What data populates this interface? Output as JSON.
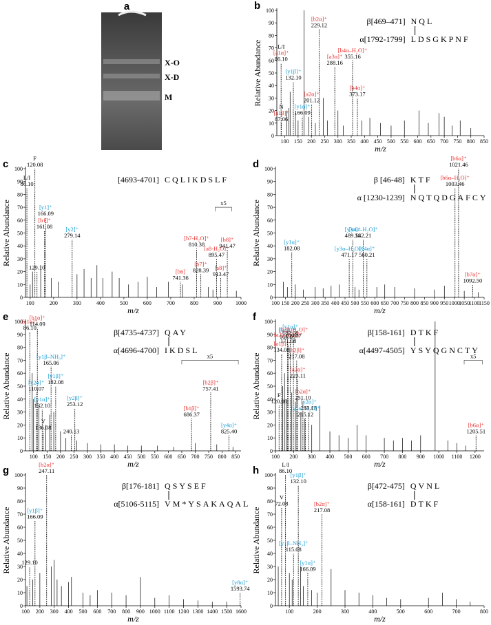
{
  "chart_data": [
    {
      "type": "gel",
      "panel": "a",
      "bands": [
        "X-O",
        "X-D",
        "M"
      ]
    },
    {
      "type": "spectrum",
      "panel": "b",
      "ylabel": "Relative Abundance",
      "xlabel": "m/z",
      "color": "#000000",
      "xlim": [
        70,
        850
      ],
      "xticks": [
        100,
        150,
        200,
        250,
        300,
        350,
        400,
        450,
        500,
        550,
        600,
        650,
        700,
        750,
        800,
        850
      ],
      "ylim": [
        0,
        100
      ],
      "yticks": [
        0,
        10,
        20,
        30,
        40,
        50,
        60,
        70,
        80,
        90,
        100
      ],
      "peptides": [
        {
          "name": "β[469–471]",
          "sequence": "NQL"
        },
        {
          "name": "α[1792-1799]",
          "sequence": "LDSGKPNF"
        }
      ],
      "x": [
        108,
        115,
        120,
        140,
        150,
        172,
        190,
        215,
        245,
        260,
        300,
        320,
        390,
        420,
        460,
        500,
        550,
        605,
        640,
        680,
        700,
        730,
        760,
        800
      ],
      "values": [
        20,
        22,
        35,
        18,
        12,
        100,
        15,
        10,
        30,
        12,
        20,
        8,
        12,
        14,
        10,
        8,
        12,
        20,
        10,
        18,
        15,
        8,
        12,
        6
      ],
      "peaks": {
        "x": [
          86.1,
          87.06,
          132.1,
          166.09,
          201.12,
          229.12,
          288.16,
          355.16,
          373.17
        ],
        "x_labels": [
          "86.10",
          "87.06",
          "132.10",
          "166.09",
          "201.12",
          "229.12",
          "288.16",
          "355.16",
          "373.17"
        ],
        "values": [
          58,
          10,
          43,
          15,
          25,
          85,
          55,
          60,
          30
        ],
        "names": [
          "[a1α]⁺",
          "[a1β]⁺",
          "[y1β]⁺",
          "[y1α]⁺",
          "[a2α]⁺",
          "[b2α]⁺",
          "[a3α]⁺",
          "[b4α–H₂O]⁺",
          "[b4α]⁺"
        ],
        "notes": [
          "L/I",
          "N",
          null,
          null,
          null,
          null,
          null,
          null,
          null
        ],
        "name_colors": [
          "#e8312f",
          "#e8312f",
          "#1a9fd6",
          "#1a9fd6",
          "#e8312f",
          "#e8312f",
          "#e8312f",
          "#e8312f",
          "#e8312f"
        ]
      }
    },
    {
      "type": "spectrum",
      "panel": "c",
      "ylabel": "Relative Abundance",
      "xlabel": "m/z",
      "color": "#000000",
      "xlim": [
        80,
        1000
      ],
      "xticks": [
        100,
        200,
        300,
        400,
        500,
        600,
        700,
        800,
        900,
        1000
      ],
      "ylim": [
        0,
        100
      ],
      "yticks": [
        0,
        10,
        20,
        30,
        40,
        50,
        60,
        70,
        80,
        90,
        100
      ],
      "peptides": [
        {
          "name": "[4693-4701]",
          "sequence": "CQLIKDSLF"
        }
      ],
      "x": [
        100,
        110,
        145,
        190,
        220,
        300,
        330,
        360,
        385,
        410,
        450,
        480,
        520,
        560,
        600,
        640,
        690,
        750,
        860,
        880,
        980
      ],
      "values": [
        10,
        20,
        25,
        15,
        12,
        18,
        22,
        15,
        25,
        15,
        20,
        15,
        10,
        12,
        16,
        8,
        12,
        10,
        8,
        6,
        5
      ],
      "peaks": {
        "x": [
          86.1,
          120.08,
          129.1,
          161.08,
          166.09,
          279.14,
          741.36,
          810.38,
          828.39,
          895.47,
          913.47,
          941.47
        ],
        "x_labels": [
          "86.10",
          "120.08",
          "129.10",
          "161.08",
          "166.09",
          "279.14",
          "741.36",
          "810.38",
          "828.39",
          "895.47",
          "913.47",
          "941.47"
        ],
        "values": [
          85,
          100,
          20,
          52,
          62,
          45,
          12,
          38,
          18,
          30,
          15,
          37
        ],
        "names": [
          null,
          null,
          null,
          "[b1]⁺",
          "[y1]⁺",
          "[y2]⁺",
          "[b6]",
          "[b7-H₂O]⁺",
          "[b7]⁺",
          "[a8-H₂O]⁺",
          "[a8]⁺",
          "[b8]⁺"
        ],
        "notes": [
          "L/I",
          "F",
          null,
          null,
          null,
          null,
          null,
          null,
          null,
          null,
          null,
          null
        ],
        "name_colors": [
          null,
          null,
          null,
          "#e8312f",
          "#1a9fd6",
          "#1a9fd6",
          "#e8312f",
          "#e8312f",
          "#e8312f",
          "#e8312f",
          "#e8312f",
          "#e8312f"
        ]
      },
      "zoom": {
        "label": "x5",
        "range": [
          890,
          960
        ]
      }
    },
    {
      "type": "spectrum",
      "panel": "d",
      "ylabel": "Relative Abundance",
      "xlabel": "m/z",
      "color": "#000000",
      "xlim": [
        100,
        1150
      ],
      "xticks": [
        100,
        150,
        200,
        250,
        300,
        350,
        400,
        450,
        500,
        550,
        600,
        650,
        700,
        750,
        800,
        850,
        900,
        950,
        1000,
        1050,
        1100,
        1150
      ],
      "ylim": [
        0,
        100
      ],
      "yticks": [
        0,
        10,
        20,
        30,
        40,
        50,
        60,
        70,
        80,
        90,
        100
      ],
      "peptides": [
        {
          "name": "β [46-48]",
          "sequence": "KTF"
        },
        {
          "name": "α [1230-1239]",
          "sequence": "NQTQDGAFCY"
        }
      ],
      "x": [
        140,
        160,
        200,
        240,
        300,
        340,
        380,
        420,
        500,
        520,
        610,
        650,
        700,
        800,
        900,
        950,
        1050,
        1120
      ],
      "values": [
        12,
        8,
        10,
        6,
        8,
        7,
        9,
        10,
        8,
        6,
        8,
        10,
        8,
        7,
        6,
        9,
        5,
        4
      ],
      "peaks": {
        "x": [
          182.08,
          471.17,
          489.18,
          542.21,
          560.21,
          1003.46,
          1021.46,
          1092.5
        ],
        "x_labels": [
          "182.08",
          "471.17",
          "489.18",
          "542.21",
          "560.21",
          "1003.46",
          "1021.46",
          "1092.50"
        ],
        "values": [
          35,
          30,
          45,
          45,
          30,
          85,
          100,
          10
        ],
        "names": [
          "[y1α]⁺",
          "[y3α–H₂O]⁺",
          "[y3α]⁺",
          "[y4α–H₂O]⁺",
          "[y4α]⁺",
          "[b6α–H₂O]⁺",
          "[b6α]⁺",
          "[b7α]⁺"
        ],
        "notes": [
          null,
          null,
          null,
          null,
          null,
          null,
          null,
          null
        ],
        "name_colors": [
          "#1a9fd6",
          "#1a9fd6",
          "#1a9fd6",
          "#1a9fd6",
          "#1a9fd6",
          "#e8312f",
          "#e8312f",
          "#e8312f"
        ]
      }
    },
    {
      "type": "spectrum",
      "panel": "e",
      "ylabel": "Relative Abundance",
      "xlabel": "m/z",
      "color": "#000000",
      "xlim": [
        70,
        870
      ],
      "xticks": [
        100,
        150,
        200,
        250,
        300,
        350,
        400,
        450,
        500,
        550,
        600,
        650,
        700,
        750,
        800,
        850
      ],
      "ylim": [
        0,
        100
      ],
      "yticks": [
        0,
        10,
        20,
        30,
        40,
        50,
        60,
        70,
        80,
        90,
        100
      ],
      "peptides": [
        {
          "name": "β[4735-4737]",
          "sequence": "QAY"
        },
        {
          "name": "α[4696-4700]",
          "sequence": "IKDSL"
        }
      ],
      "x": [
        95,
        100,
        120,
        145,
        160,
        175,
        200,
        220,
        260,
        300,
        350,
        400,
        450,
        500,
        560,
        620,
        700,
        780,
        840
      ],
      "values": [
        60,
        40,
        35,
        20,
        28,
        30,
        15,
        10,
        8,
        6,
        5,
        5,
        4,
        4,
        4,
        3,
        6,
        5,
        3
      ],
      "peaks": {
        "x": [
          86.1,
          110.07,
          114.09,
          132.1,
          136.08,
          165.06,
          182.08,
          240.13,
          253.12,
          686.37,
          757.41,
          825.4
        ],
        "x_labels": [
          "86.10",
          "110.07",
          "114.09",
          "132.10",
          "136.08",
          "165.06",
          "182.08",
          "240.13",
          "253.12",
          "686.37",
          "757.41",
          "825.40"
        ],
        "values": [
          92,
          45,
          95,
          32,
          15,
          65,
          50,
          12,
          33,
          25,
          45,
          12
        ],
        "names": [
          "[a1α]⁺",
          "[y2α]⁺",
          "[b1α]⁺",
          "[y1α]⁺",
          null,
          "[y1β–NH₃]⁺",
          "[y1β]⁺",
          null,
          "[y2β]⁺",
          "[b1β]⁺",
          "[b2β]⁺",
          "[y4α]⁺"
        ],
        "notes": [
          null,
          null,
          null,
          null,
          "Y",
          null,
          null,
          null,
          null,
          null,
          null,
          null
        ],
        "name_colors": [
          "#e8312f",
          "#1a9fd6",
          "#e8312f",
          "#1a9fd6",
          null,
          "#1a9fd6",
          "#1a9fd6",
          null,
          "#1a9fd6",
          "#e8312f",
          "#e8312f",
          "#1a9fd6"
        ]
      },
      "zoom": {
        "label": "x5",
        "range": [
          650,
          860
        ]
      }
    },
    {
      "type": "spectrum",
      "panel": "f",
      "ylabel": "Relative Abundance",
      "xlabel": "m/z",
      "color": "#000000",
      "xlim": [
        100,
        1250
      ],
      "xticks": [
        100,
        200,
        300,
        400,
        500,
        600,
        700,
        800,
        900,
        1000,
        1100,
        1200
      ],
      "ylim": [
        0,
        100
      ],
      "yticks": [
        0,
        10,
        20,
        30,
        40,
        50,
        60,
        70,
        80,
        90,
        100
      ],
      "peptides": [
        {
          "name": "β[158-161]",
          "sequence": "DTKF"
        },
        {
          "name": "α[4497-4505]",
          "sequence": "YSYQGNCTY"
        }
      ],
      "x": [
        140,
        150,
        160,
        190,
        210,
        240,
        260,
        300,
        345,
        400,
        450,
        500,
        550,
        600,
        700,
        750,
        800,
        850,
        900,
        980,
        1050,
        1100,
        1150
      ],
      "values": [
        50,
        60,
        40,
        45,
        38,
        30,
        25,
        20,
        35,
        15,
        12,
        10,
        20,
        12,
        10,
        8,
        10,
        8,
        12,
        100,
        8,
        6,
        4
      ],
      "peaks": {
        "x": [
          120.08,
          134.08,
          166.09,
          171.08,
          182.08,
          199.07,
          217.08,
          223.11,
          251.1,
          265.12,
          283.13,
          1205.51
        ],
        "x_labels": [
          "120.08",
          "134.08",
          "166.09",
          "171.08",
          "182.08",
          "199.07",
          "217.08",
          "223.11",
          "251.10",
          "265.12",
          "283.13",
          "1205.51"
        ],
        "values": [
          35,
          75,
          85,
          82,
          88,
          86,
          70,
          55,
          38,
          25,
          30,
          12
        ],
        "names": [
          null,
          "[a1β]⁺",
          "[y1β]⁺",
          "[a2β–H20]⁺",
          "[y1α]⁺",
          "[b2β–H₂O]⁺",
          "[b2β]⁺",
          "[a2α]⁺",
          "[b2α]⁺",
          "[y2α–H₂O]⁺",
          "[y2α]⁺",
          "[b6α]⁺"
        ],
        "notes": [
          "F",
          null,
          null,
          null,
          null,
          null,
          null,
          null,
          null,
          null,
          null,
          null
        ],
        "name_colors": [
          null,
          "#e8312f",
          "#1a9fd6",
          "#e8312f",
          "#1a9fd6",
          "#e8312f",
          "#e8312f",
          "#e8312f",
          "#e8312f",
          "#1a9fd6",
          "#1a9fd6",
          "#e8312f"
        ]
      },
      "zoom": {
        "label": "x5",
        "range": [
          1140,
          1240
        ]
      }
    },
    {
      "type": "spectrum",
      "panel": "g",
      "ylabel": "Relative Abundance",
      "xlabel": "m/z",
      "color": "#000000",
      "xlim": [
        100,
        1600
      ],
      "xticks": [
        100,
        200,
        300,
        400,
        500,
        600,
        700,
        800,
        900,
        1000,
        1100,
        1200,
        1300,
        1400,
        1500,
        1600
      ],
      "ylim": [
        0,
        100
      ],
      "yticks": [
        0,
        10,
        20,
        30,
        40,
        50,
        60,
        70,
        80,
        90,
        100
      ],
      "peptides": [
        {
          "name": "β[176-181]",
          "sequence": "QSYSEF"
        },
        {
          "name": "α[5106-5115]",
          "sequence": "VM*YSAKAQAL"
        }
      ],
      "x": [
        110,
        150,
        200,
        280,
        300,
        320,
        350,
        400,
        420,
        500,
        550,
        600,
        700,
        800,
        900,
        1000,
        1100,
        1200,
        1300,
        1400,
        1500
      ],
      "values": [
        15,
        20,
        25,
        30,
        35,
        20,
        15,
        18,
        22,
        10,
        8,
        12,
        10,
        8,
        22,
        6,
        8,
        5,
        4,
        3,
        3
      ],
      "peaks": {
        "x": [
          129.1,
          166.09,
          247.11,
          1593.74
        ],
        "x_labels": [
          "129.10",
          "166.09",
          "247.11",
          "1593.74"
        ],
        "values": [
          30,
          65,
          100,
          10
        ],
        "names": [
          null,
          "[y1β]⁺",
          "[b2α]⁺",
          "[y8α]⁺"
        ],
        "notes": [
          null,
          null,
          null,
          null
        ],
        "name_colors": [
          null,
          "#1a9fd6",
          "#e8312f",
          "#1a9fd6"
        ]
      }
    },
    {
      "type": "spectrum",
      "panel": "h",
      "ylabel": "Relative Abundance",
      "xlabel": "m/z",
      "color": "#000000",
      "xlim": [
        50,
        800
      ],
      "xticks": [
        100,
        200,
        300,
        400,
        500,
        600,
        700,
        800
      ],
      "ylim": [
        0,
        100
      ],
      "yticks": [
        0,
        10,
        20,
        30,
        40,
        50,
        60,
        70,
        80,
        90,
        100
      ],
      "peptides": [
        {
          "name": "β[472-475]",
          "sequence": "QVNL"
        },
        {
          "name": "α[158-161]",
          "sequence": "DTKF"
        }
      ],
      "x": [
        60,
        100,
        110,
        140,
        150,
        180,
        200,
        250,
        300,
        350,
        400,
        450,
        500,
        600,
        650,
        700,
        750
      ],
      "values": [
        30,
        25,
        20,
        30,
        15,
        12,
        10,
        28,
        12,
        10,
        8,
        6,
        5,
        6,
        10,
        5,
        3
      ],
      "peaks": {
        "x": [
          72.08,
          86.1,
          115.08,
          132.1,
          166.09,
          217.08
        ],
        "x_labels": [
          "72.08",
          "86.10",
          "115.08",
          "132.10",
          "166.09",
          "217.08"
        ],
        "values": [
          75,
          100,
          40,
          92,
          25,
          70
        ],
        "names": [
          null,
          null,
          "[y1β–NH₃]⁺",
          "[y1β]⁺",
          "[y1α]⁺",
          "[b2α]⁺"
        ],
        "notes": [
          "V",
          "L/I",
          null,
          null,
          null,
          null
        ],
        "name_colors": [
          null,
          null,
          "#1a9fd6",
          "#1a9fd6",
          "#1a9fd6",
          "#e8312f"
        ]
      }
    }
  ]
}
